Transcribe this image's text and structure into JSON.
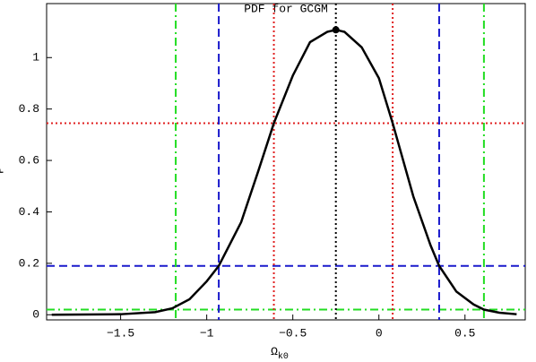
{
  "chart_data": {
    "type": "line",
    "title": "PDF for GCGM",
    "x_label": "Ω",
    "x_label_sub": "k0",
    "y_label": "P",
    "x": [
      -1.9,
      -1.5,
      -1.3,
      -1.2,
      -1.1,
      -1.0,
      -0.93,
      -0.8,
      -0.7,
      -0.61,
      -0.5,
      -0.4,
      -0.3,
      -0.25,
      -0.2,
      -0.1,
      0,
      0.08,
      0.2,
      0.3,
      0.35,
      0.45,
      0.55,
      0.61,
      0.7,
      0.8
    ],
    "values": [
      0,
      0.002,
      0.01,
      0.025,
      0.06,
      0.13,
      0.19,
      0.36,
      0.56,
      0.745,
      0.93,
      1.06,
      1.1,
      1.108,
      1.1,
      1.04,
      0.92,
      0.745,
      0.46,
      0.27,
      0.19,
      0.09,
      0.04,
      0.02,
      0.008,
      0.002
    ],
    "color": "#000000",
    "peak": {
      "x": -0.25,
      "y": 1.108
    },
    "vlines": [
      {
        "value": -1.18,
        "color": "#22dd22",
        "dash": "dashdot"
      },
      {
        "value": -0.93,
        "color": "#1a1acc",
        "dash": "dashed"
      },
      {
        "value": -0.61,
        "color": "#e02020",
        "dash": "dotted"
      },
      {
        "value": -0.25,
        "color": "#000000",
        "dash": "dotted"
      },
      {
        "value": 0.08,
        "color": "#e02020",
        "dash": "dotted"
      },
      {
        "value": 0.35,
        "color": "#1a1acc",
        "dash": "dashed"
      },
      {
        "value": 0.61,
        "color": "#22dd22",
        "dash": "dashdot"
      }
    ],
    "hlines": [
      {
        "value": 0.745,
        "color": "#e02020",
        "dash": "dotted"
      },
      {
        "value": 0.19,
        "color": "#1a1acc",
        "dash": "dashed"
      },
      {
        "value": 0.02,
        "color": "#22dd22",
        "dash": "dashdot"
      }
    ],
    "xlim": [
      -1.93,
      0.85
    ],
    "ylim": [
      -0.02,
      1.21
    ],
    "xticks": [
      {
        "value": -1.5,
        "label": "−1.5"
      },
      {
        "value": -1,
        "label": "−1"
      },
      {
        "value": -0.5,
        "label": "−0.5"
      },
      0,
      0.5
    ],
    "yticks": [
      0,
      0.2,
      0.4,
      0.6,
      0.8,
      1
    ]
  }
}
